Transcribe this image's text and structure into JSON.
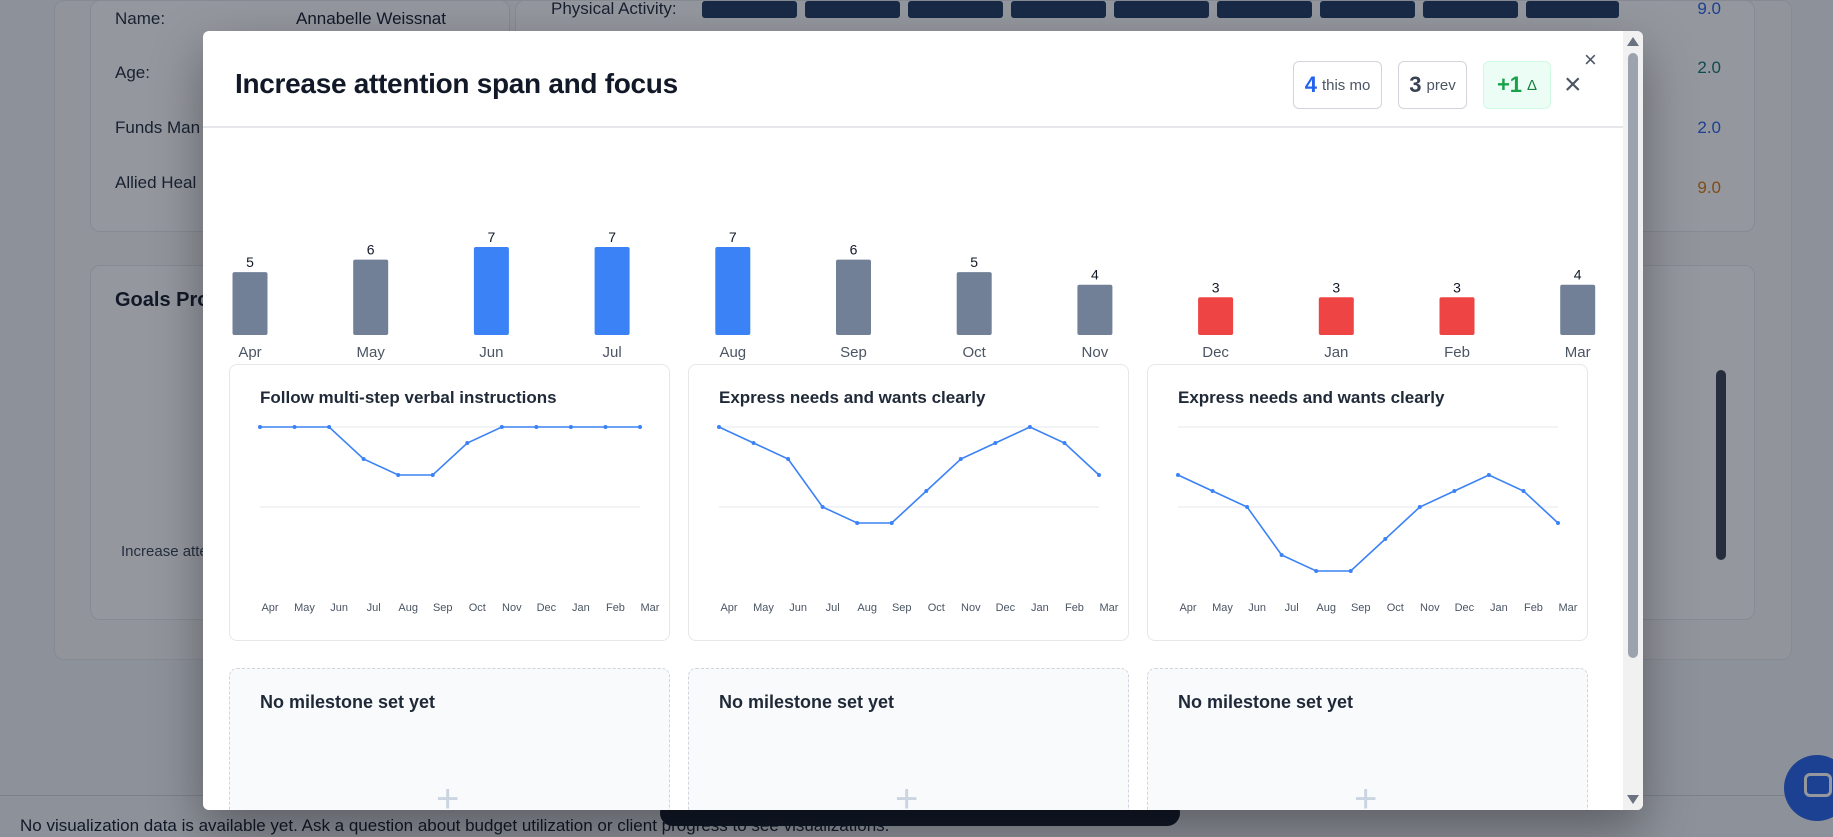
{
  "background": {
    "client_fields": [
      {
        "label": "Name:",
        "value": "Annabelle Weissnat"
      },
      {
        "label": "Age:"
      },
      {
        "label": "Funds Man"
      },
      {
        "label": "Allied Heal"
      }
    ],
    "activity_label": "Physical Activity:",
    "right_values": [
      {
        "value": "9.0",
        "color": "#2563eb"
      },
      {
        "value": "2.0",
        "color": "#0f766e"
      },
      {
        "value": "2.0",
        "color": "#2563eb"
      },
      {
        "value": "9.0",
        "color": "#d97706"
      }
    ],
    "goals_title": "Goals Prog",
    "goals_item_label": "Increase atte",
    "footer_text": "No visualization data is available yet. Ask a question about budget utilization or client progress to see visualizations."
  },
  "modal": {
    "title": "Increase attention span and focus",
    "stats": {
      "current": {
        "value": "4",
        "label": "this mo"
      },
      "previous": {
        "value": "3",
        "label": "prev"
      },
      "delta": {
        "value": "+1",
        "label": "Δ"
      }
    },
    "close_symbol": "×"
  },
  "chart_data": [
    {
      "type": "bar",
      "title": "Increase attention span and focus",
      "categories": [
        "Apr",
        "May",
        "Jun",
        "Jul",
        "Aug",
        "Sep",
        "Oct",
        "Nov",
        "Dec",
        "Jan",
        "Feb",
        "Mar"
      ],
      "values": [
        5,
        6,
        7,
        7,
        7,
        6,
        5,
        4,
        3,
        3,
        3,
        4
      ],
      "colors": [
        "#718096",
        "#718096",
        "#3b82f6",
        "#3b82f6",
        "#3b82f6",
        "#718096",
        "#718096",
        "#718096",
        "#ef4444",
        "#ef4444",
        "#ef4444",
        "#718096"
      ],
      "ylim": [
        0,
        7
      ]
    },
    {
      "type": "line",
      "title": "Follow multi-step verbal instructions",
      "categories": [
        "Apr",
        "May",
        "Jun",
        "Jul",
        "Aug",
        "Sep",
        "Oct",
        "Nov",
        "Dec",
        "Jan",
        "Feb",
        "Mar"
      ],
      "values": [
        10,
        10,
        10,
        8,
        7,
        7,
        9,
        10,
        10,
        10,
        10,
        10
      ],
      "ylim": [
        0,
        10
      ]
    },
    {
      "type": "line",
      "title": "Express needs and wants clearly",
      "categories": [
        "Apr",
        "May",
        "Jun",
        "Jul",
        "Aug",
        "Sep",
        "Oct",
        "Nov",
        "Dec",
        "Jan",
        "Feb",
        "Mar"
      ],
      "values": [
        10,
        9,
        8,
        5,
        4,
        4,
        6,
        8,
        9,
        10,
        9,
        7
      ],
      "ylim": [
        0,
        10
      ]
    },
    {
      "type": "line",
      "title": "Express needs and wants clearly",
      "categories": [
        "Apr",
        "May",
        "Jun",
        "Jul",
        "Aug",
        "Sep",
        "Oct",
        "Nov",
        "Dec",
        "Jan",
        "Feb",
        "Mar"
      ],
      "values": [
        7,
        6,
        5,
        2,
        1,
        1,
        3,
        5,
        6,
        7,
        6,
        4
      ],
      "ylim": [
        0,
        10
      ]
    }
  ],
  "milestones": [
    {
      "title": "No milestone set yet",
      "plus": "+"
    },
    {
      "title": "No milestone set yet",
      "plus": "+"
    },
    {
      "title": "No milestone set yet",
      "plus": "+"
    }
  ]
}
